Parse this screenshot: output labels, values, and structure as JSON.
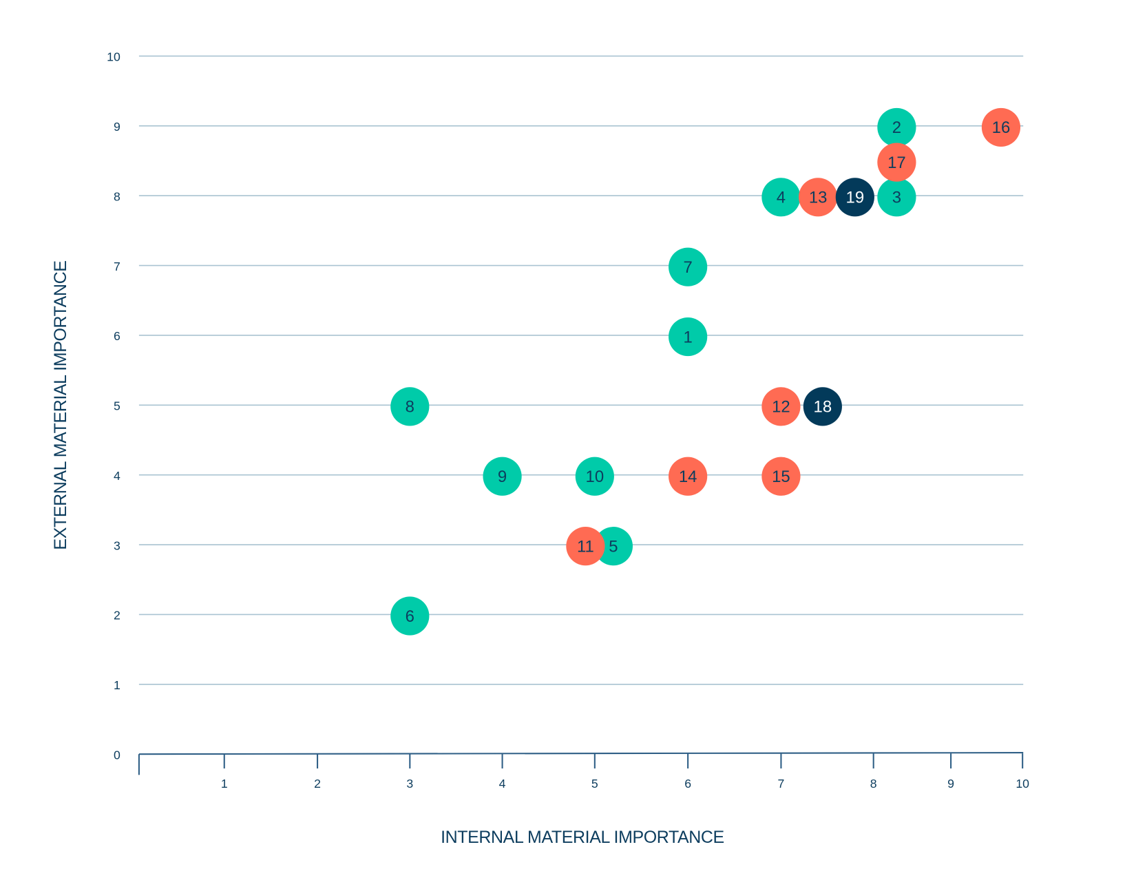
{
  "chart_data": {
    "type": "scatter",
    "title": "",
    "xlabel": "INTERNAL MATERIAL IMPORTANCE",
    "ylabel": "EXTERNAL MATERIAL IMPORTANCE",
    "xlim": [
      0,
      10
    ],
    "ylim": [
      0,
      10
    ],
    "xticks": [
      "1",
      "2",
      "3",
      "4",
      "5",
      "6",
      "7",
      "8",
      "9",
      "10"
    ],
    "yticks": [
      "0",
      "1",
      "2",
      "3",
      "4",
      "5",
      "6",
      "7",
      "8",
      "9",
      "10"
    ],
    "grid": "horizontal",
    "colors": {
      "teal": "#00CBA9",
      "coral": "#FF6B53",
      "navy": "#033A5A",
      "text": "#0D3D5E",
      "grid": "#A9C3D1"
    },
    "points": [
      {
        "label": "1",
        "x": 6,
        "y": 6,
        "group": "teal"
      },
      {
        "label": "2",
        "x": 8.3,
        "y": 9,
        "group": "teal"
      },
      {
        "label": "3",
        "x": 8.3,
        "y": 8,
        "group": "teal"
      },
      {
        "label": "4",
        "x": 7,
        "y": 8,
        "group": "teal"
      },
      {
        "label": "5",
        "x": 5.2,
        "y": 3,
        "group": "teal"
      },
      {
        "label": "6",
        "x": 3,
        "y": 2,
        "group": "teal"
      },
      {
        "label": "7",
        "x": 6,
        "y": 7,
        "group": "teal"
      },
      {
        "label": "8",
        "x": 3,
        "y": 5,
        "group": "teal"
      },
      {
        "label": "9",
        "x": 4,
        "y": 4,
        "group": "teal"
      },
      {
        "label": "10",
        "x": 5,
        "y": 4,
        "group": "teal"
      },
      {
        "label": "11",
        "x": 4.9,
        "y": 3,
        "group": "coral"
      },
      {
        "label": "12",
        "x": 7,
        "y": 5,
        "group": "coral"
      },
      {
        "label": "13",
        "x": 7.4,
        "y": 8,
        "group": "coral"
      },
      {
        "label": "14",
        "x": 6,
        "y": 4,
        "group": "coral"
      },
      {
        "label": "15",
        "x": 7,
        "y": 4,
        "group": "coral"
      },
      {
        "label": "16",
        "x": 9.7,
        "y": 9,
        "group": "coral"
      },
      {
        "label": "17",
        "x": 8.3,
        "y": 8.5,
        "group": "coral"
      },
      {
        "label": "18",
        "x": 7.45,
        "y": 5,
        "group": "navy"
      },
      {
        "label": "19",
        "x": 7.8,
        "y": 8,
        "group": "navy"
      }
    ]
  }
}
